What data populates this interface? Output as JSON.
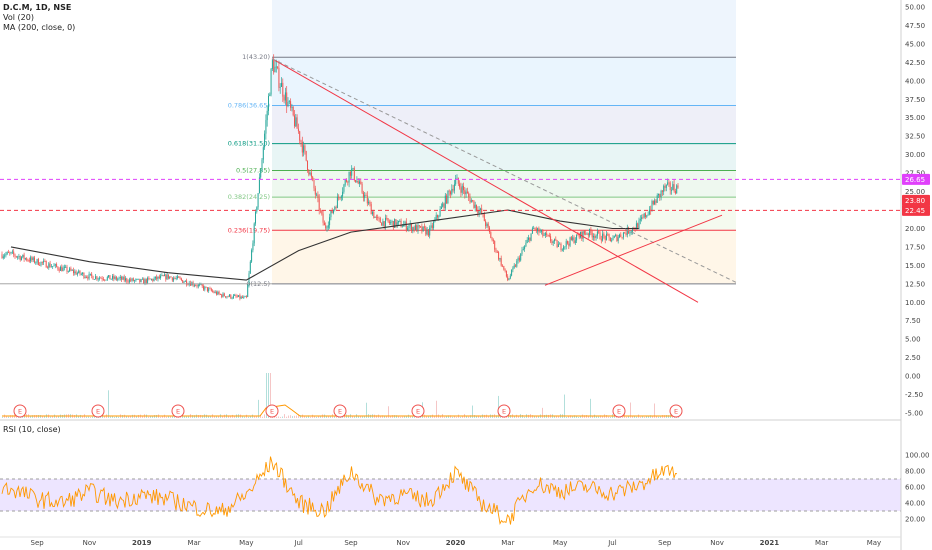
{
  "header": {
    "title": "D.C.M, 1D, NSE",
    "vol_label": "Vol (20)",
    "ma_label": "MA (200, close, 0)",
    "rsi_label": "RSI (10, close)"
  },
  "colors": {
    "up": "#26a69a",
    "down": "#ef5350",
    "ma": "#333333",
    "fib_0": "#787b86",
    "fib_0236": "#f23645",
    "fib_0382": "#81c784",
    "fib_05": "#4caf50",
    "fib_0618": "#089981",
    "fib_0786": "#64b5f6",
    "fib_1": "#787b86",
    "rsi": "#ff9800",
    "rsi_band": "#ede5ff",
    "trend": "#f23645",
    "price_tag_pink": "#e040fb",
    "price_tag_red": "#f23645"
  },
  "chart_data": [
    {
      "type": "line",
      "title": "D.C.M, 1D, NSE",
      "xlabel": "",
      "ylabel": "",
      "x_ticks": [
        "Sep",
        "Nov",
        "2019",
        "Mar",
        "May",
        "Jul",
        "Sep",
        "Nov",
        "2020",
        "Mar",
        "May",
        "Jul",
        "Sep",
        "Nov",
        "2021",
        "Mar",
        "May"
      ],
      "y_ticks": [
        "50.00",
        "47.50",
        "45.00",
        "42.50",
        "40.00",
        "37.50",
        "35.00",
        "32.50",
        "30.00",
        "27.50",
        "25.00",
        "22.50",
        "20.00",
        "17.50",
        "15.00",
        "12.50",
        "10.00",
        "7.50",
        "5.00",
        "2.50",
        "0.00",
        "-2.50",
        "-5.00"
      ],
      "ylim": [
        -5,
        50
      ],
      "grid": false,
      "series": [
        {
          "name": "D.C.M",
          "x": [
            "Aug 2018",
            "Sep 2018",
            "Oct 2018",
            "Nov 2018",
            "Dec 2018",
            "Jan 2019",
            "Feb 2019",
            "Mar 2019",
            "Apr 2019",
            "May 2019",
            "Jun 2019",
            "Jul 2019",
            "Aug 2019",
            "Sep 2019",
            "Oct 2019",
            "Nov 2019",
            "Dec 2019",
            "Jan 2020",
            "Feb 2020",
            "Mar 2020",
            "Apr 2020",
            "May 2020",
            "Jun 2020",
            "Jul 2020",
            "Aug 2020",
            "Sep 2020"
          ],
          "values": [
            16.5,
            15.5,
            14.5,
            13.5,
            13.2,
            12.8,
            13.5,
            12.5,
            11.0,
            10.5,
            42.5,
            33.0,
            20.0,
            28.0,
            21.0,
            20.5,
            19.5,
            26.5,
            22.0,
            13.0,
            20.0,
            17.5,
            19.5,
            18.5,
            20.5,
            25.5
          ]
        },
        {
          "name": "MA (200, close, 0)",
          "x": [
            "Aug 2018",
            "Nov 2018",
            "Feb 2019",
            "May 2019",
            "Jul 2019",
            "Sep 2019",
            "Nov 2019",
            "Jan 2020",
            "Mar 2020",
            "May 2020",
            "Jul 2020",
            "Aug 2020"
          ],
          "values": [
            17.5,
            15.5,
            14.0,
            13.0,
            17.0,
            19.5,
            20.5,
            21.5,
            22.5,
            21.0,
            20.0,
            20.0
          ]
        }
      ],
      "fib_levels": [
        {
          "label": "1(43.20)",
          "value": 43.2
        },
        {
          "label": "0.786(36.65)",
          "value": 36.65
        },
        {
          "label": "0.618(31.50)",
          "value": 31.5
        },
        {
          "label": "0.5(27.85)",
          "value": 27.85
        },
        {
          "label": "0.382(24.25)",
          "value": 24.25
        },
        {
          "label": "0.236(19.75)",
          "value": 19.75
        },
        {
          "label": "0(12.5)",
          "value": 12.5
        }
      ],
      "price_tags": [
        {
          "label": "26.65",
          "value": 26.65
        },
        {
          "label": "23.80",
          "value": 23.8
        },
        {
          "label": "22.45",
          "value": 22.45
        }
      ],
      "event_markers": [
        "E",
        "E",
        "E",
        "E",
        "E",
        "E",
        "E",
        "E",
        "E"
      ]
    },
    {
      "type": "line",
      "title": "RSI (10, close)",
      "y_ticks": [
        "100.00",
        "80.00",
        "60.00",
        "40.00",
        "20.00"
      ],
      "ylim": [
        10,
        100
      ],
      "band": [
        30,
        70
      ],
      "series": [
        {
          "name": "RSI (10, close)",
          "x": [
            "Aug 2018",
            "Sep 2018",
            "Oct 2018",
            "Nov 2018",
            "Dec 2018",
            "Jan 2019",
            "Feb 2019",
            "Mar 2019",
            "Apr 2019",
            "May 2019",
            "Jun 2019",
            "Jul 2019",
            "Aug 2019",
            "Sep 2019",
            "Oct 2019",
            "Nov 2019",
            "Dec 2019",
            "Jan 2020",
            "Feb 2020",
            "Mar 2020",
            "Apr 2020",
            "May 2020",
            "Jun 2020",
            "Jul 2020",
            "Aug 2020",
            "Sep 2020"
          ],
          "values": [
            58,
            45,
            40,
            55,
            42,
            50,
            45,
            35,
            28,
            50,
            92,
            40,
            30,
            80,
            45,
            50,
            42,
            78,
            40,
            18,
            65,
            55,
            60,
            52,
            62,
            80
          ]
        }
      ]
    }
  ]
}
